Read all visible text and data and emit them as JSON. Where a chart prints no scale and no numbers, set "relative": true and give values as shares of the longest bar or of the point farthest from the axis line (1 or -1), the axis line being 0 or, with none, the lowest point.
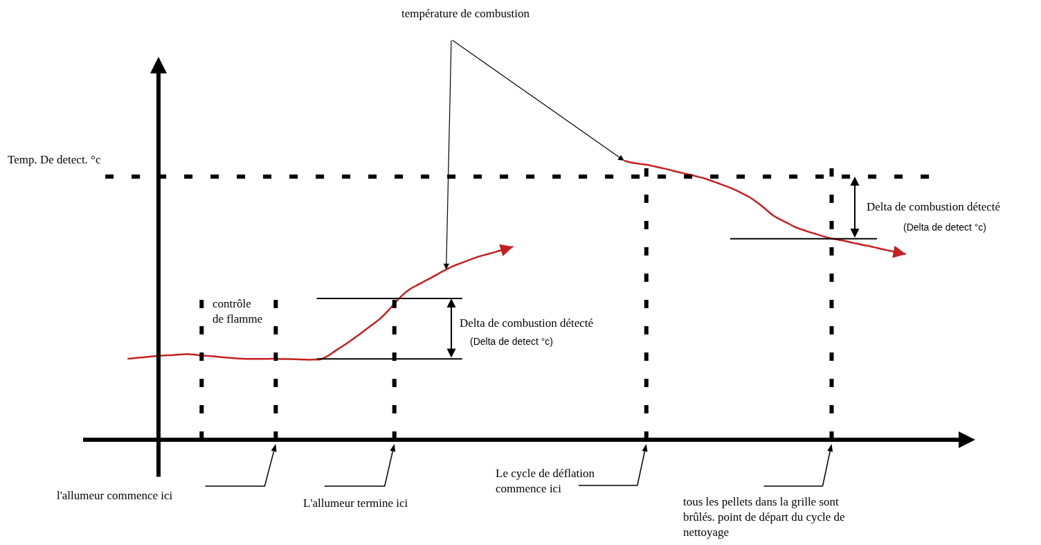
{
  "chart_data": {
    "type": "line",
    "relative": true,
    "categories": [
      null,
      null,
      null,
      null,
      null,
      null,
      null,
      null,
      null,
      null,
      null,
      null,
      null,
      null,
      null,
      null,
      null,
      null,
      null,
      null,
      null,
      null,
      null,
      null,
      null,
      null,
      null,
      null,
      null,
      null,
      null,
      null,
      null,
      null,
      null,
      null,
      null,
      null,
      null,
      null,
      null,
      null,
      null,
      null,
      null,
      null,
      null,
      null,
      null,
      null,
      null,
      null,
      null,
      null,
      null,
      null,
      null,
      null,
      null,
      null,
      null,
      null,
      null,
      null,
      null,
      null,
      null,
      null,
      null,
      null,
      null,
      null,
      null,
      null,
      null,
      null,
      null,
      null,
      null,
      null,
      null,
      null,
      null,
      null,
      null,
      null,
      null,
      null,
      null,
      null,
      null,
      null,
      null,
      null,
      null,
      null,
      null,
      null,
      null,
      null,
      null,
      null,
      null,
      null,
      null,
      null,
      null,
      null,
      null,
      null,
      null,
      null,
      null
    ],
    "series": [
      {
        "color": "#c81e1e",
        "values": [
          null,
          null,
          null,
          0.29,
          0.293,
          0.295,
          0.298,
          0.3,
          0.302,
          0.303,
          0.305,
          0.307,
          0.305,
          0.302,
          0.3,
          0.298,
          0.295,
          0.293,
          0.291,
          0.29,
          0.29,
          0.29,
          0.29,
          0.29,
          0.289,
          0.289,
          0.288,
          0.287,
          0.287,
          0.288,
          0.3,
          0.318,
          0.335,
          0.353,
          0.372,
          0.392,
          0.412,
          0.432,
          0.458,
          0.488,
          0.516,
          0.538,
          0.553,
          0.567,
          0.581,
          0.596,
          0.61,
          0.623,
          0.633,
          0.643,
          0.653,
          0.661,
          0.668,
          0.676,
          0.684,
          0.692,
          null,
          null,
          null,
          null,
          null,
          null,
          null,
          null,
          null,
          null,
          null,
          null,
          null,
          null,
          null,
          null,
          null,
          null,
          null,
          null,
          null,
          null,
          null,
          null,
          null,
          null,
          null,
          null,
          null,
          null,
          null,
          null,
          null,
          null,
          null,
          null,
          null,
          null,
          null,
          null,
          null,
          null,
          null,
          null,
          null,
          null,
          null,
          null,
          null,
          null,
          null,
          null,
          null,
          null,
          null,
          null,
          null
        ]
      },
      {
        "color": "#c81e1e",
        "values": [
          null,
          null,
          null,
          null,
          null,
          null,
          null,
          null,
          null,
          null,
          null,
          null,
          null,
          null,
          null,
          null,
          null,
          null,
          null,
          null,
          null,
          null,
          null,
          null,
          null,
          null,
          null,
          null,
          null,
          null,
          null,
          null,
          null,
          null,
          null,
          null,
          null,
          null,
          null,
          null,
          null,
          null,
          null,
          null,
          null,
          null,
          null,
          null,
          null,
          null,
          null,
          null,
          null,
          null,
          null,
          null,
          null,
          null,
          null,
          null,
          null,
          null,
          null,
          null,
          null,
          null,
          null,
          null,
          null,
          null,
          1,
          0.993,
          0.989,
          0.986,
          0.98,
          0.974,
          0.968,
          0.961,
          0.955,
          0.949,
          0.942,
          0.935,
          0.926,
          0.916,
          0.906,
          0.895,
          0.882,
          0.868,
          0.849,
          0.828,
          0.806,
          0.79,
          0.777,
          0.763,
          0.753,
          0.744,
          0.736,
          0.728,
          0.721,
          0.716,
          0.711,
          0.705,
          0.699,
          0.694,
          0.688,
          0.682,
          0.676,
          0.67,
          0.665,
          null,
          null,
          null,
          null
        ]
      }
    ],
    "ref_lines": [
      {
        "axis": "y",
        "value": 0.943,
        "label": "Temp. De detect. °c",
        "line_style": "dashed"
      },
      {
        "axis": "y",
        "value": 0.29
      },
      {
        "axis": "y",
        "value": 0.506
      },
      {
        "axis": "y",
        "value": 0.72
      }
    ],
    "annotations": [
      "température de combustion",
      "contrôle\nde flamme",
      "l'allumeur commence ici",
      "L'allumeur termine ici",
      "Le cycle de déflation\ncommence ici",
      "tous les pellets dans la grille sont\nbrûlés. point de départ du cycle de\nnettoyage",
      "Delta de combustion détecté\n(Delta de detect °c)",
      "Delta de combustion détecté\n(Delta de detect °c)"
    ]
  }
}
